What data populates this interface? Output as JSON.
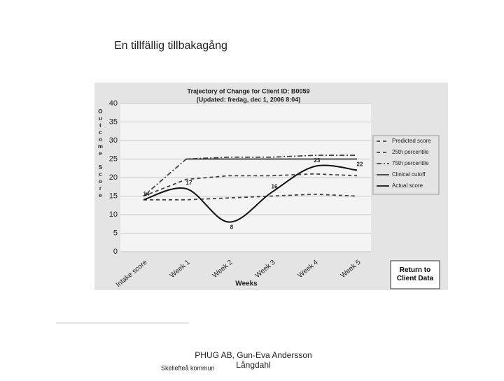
{
  "slide": {
    "title": "En tillfällig tillbakagång",
    "footer": [
      "PHUG AB, Gun-Eva Andersson",
      "Långdahl"
    ],
    "organization": "Skellefteå kommun"
  },
  "chart_data": {
    "type": "line",
    "title": "Trajectory of Change for Client ID: B0059",
    "subtitle": "(Updated: fredag, dec 1, 2006 8:04)",
    "y_label": "Outcome Score",
    "x_label": "Weeks",
    "categories": [
      "Intake score",
      "Week 1",
      "Week 2",
      "Week 3",
      "Week 4",
      "Week 5"
    ],
    "ylim": [
      0,
      40
    ],
    "yticks": [
      0,
      5,
      10,
      15,
      20,
      25,
      30,
      35,
      40
    ],
    "grid": true,
    "legend": "right",
    "series": [
      {
        "name": "Predicted score",
        "color": "#444444",
        "line_style": "dashed",
        "values": [
          15,
          19.5,
          20.5,
          20.5,
          21,
          20.5
        ]
      },
      {
        "name": "25th percentile",
        "color": "#444444",
        "line_style": "dashed",
        "values": [
          14,
          14,
          14.5,
          15,
          15.5,
          15
        ]
      },
      {
        "name": "75th percentile",
        "color": "#444444",
        "line_style": "dashdot",
        "values": [
          15,
          25,
          25.5,
          25.5,
          26,
          26
        ]
      },
      {
        "name": "Clinical cutoff",
        "color": "#333333",
        "line_style": "solid",
        "values": [
          null,
          25,
          25,
          25,
          25,
          25
        ]
      },
      {
        "name": "Actual score",
        "color": "#111111",
        "line_style": "solid",
        "smooth": true,
        "data_labels": true,
        "values": [
          14,
          17,
          8,
          16,
          23,
          22
        ]
      }
    ]
  },
  "button": {
    "label": "Return to Client Data"
  }
}
